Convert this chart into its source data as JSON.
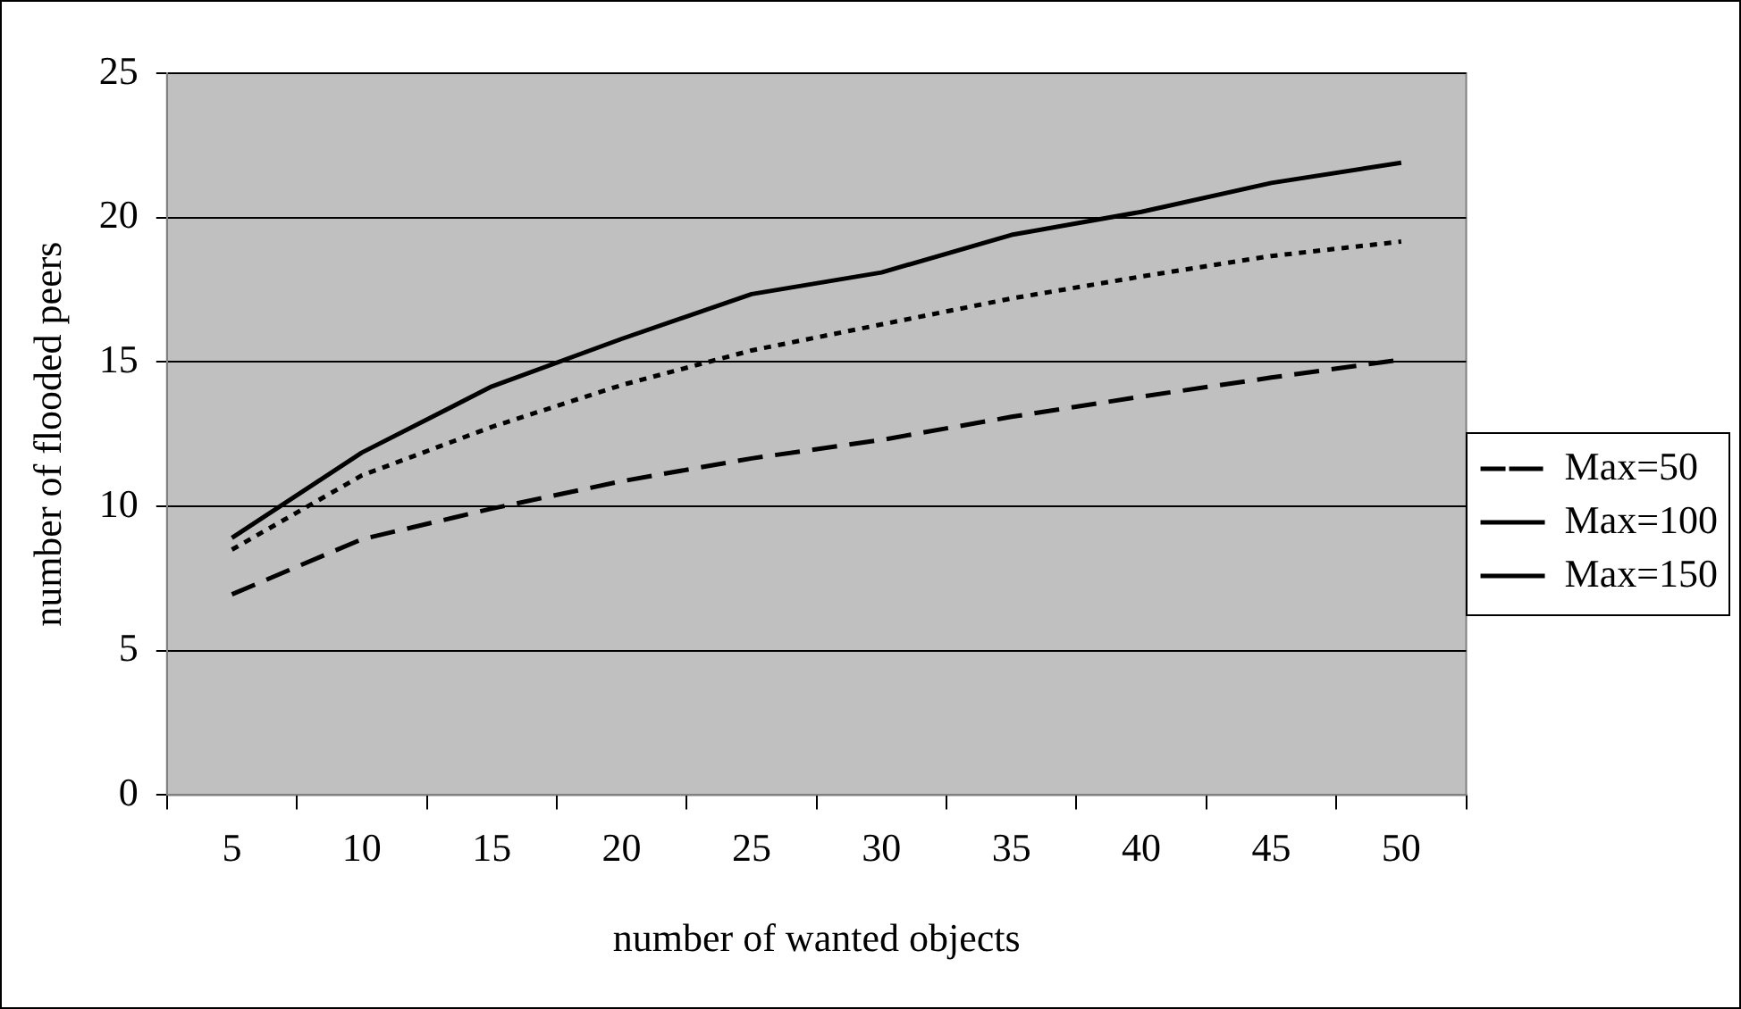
{
  "chart_data": {
    "type": "line",
    "xlabel": "number of wanted objects",
    "ylabel": "number of flooded peers",
    "categories": [
      "5",
      "10",
      "15",
      "20",
      "25",
      "30",
      "35",
      "40",
      "45",
      "50"
    ],
    "series": [
      {
        "name": "Max=50",
        "color": "#000000",
        "line_style": "dashed",
        "values": [
          6.95,
          8.86,
          9.92,
          10.87,
          11.66,
          12.3,
          13.1,
          13.8,
          14.46,
          15.08
        ]
      },
      {
        "name": "Max=100",
        "color": "#000000",
        "line_style": "dotted",
        "values": [
          8.5,
          11.07,
          12.75,
          14.2,
          15.4,
          16.3,
          17.2,
          17.96,
          18.67,
          19.17
        ]
      },
      {
        "name": "Max=150",
        "color": "#000000",
        "line_style": "solid",
        "values": [
          8.91,
          11.86,
          14.15,
          15.8,
          17.35,
          18.1,
          19.4,
          20.2,
          21.2,
          21.9
        ]
      }
    ],
    "ylim": [
      0,
      25
    ],
    "yticks": [
      0,
      5,
      10,
      15,
      20,
      25
    ],
    "grid": "y",
    "legend": "right",
    "marker": "none"
  }
}
